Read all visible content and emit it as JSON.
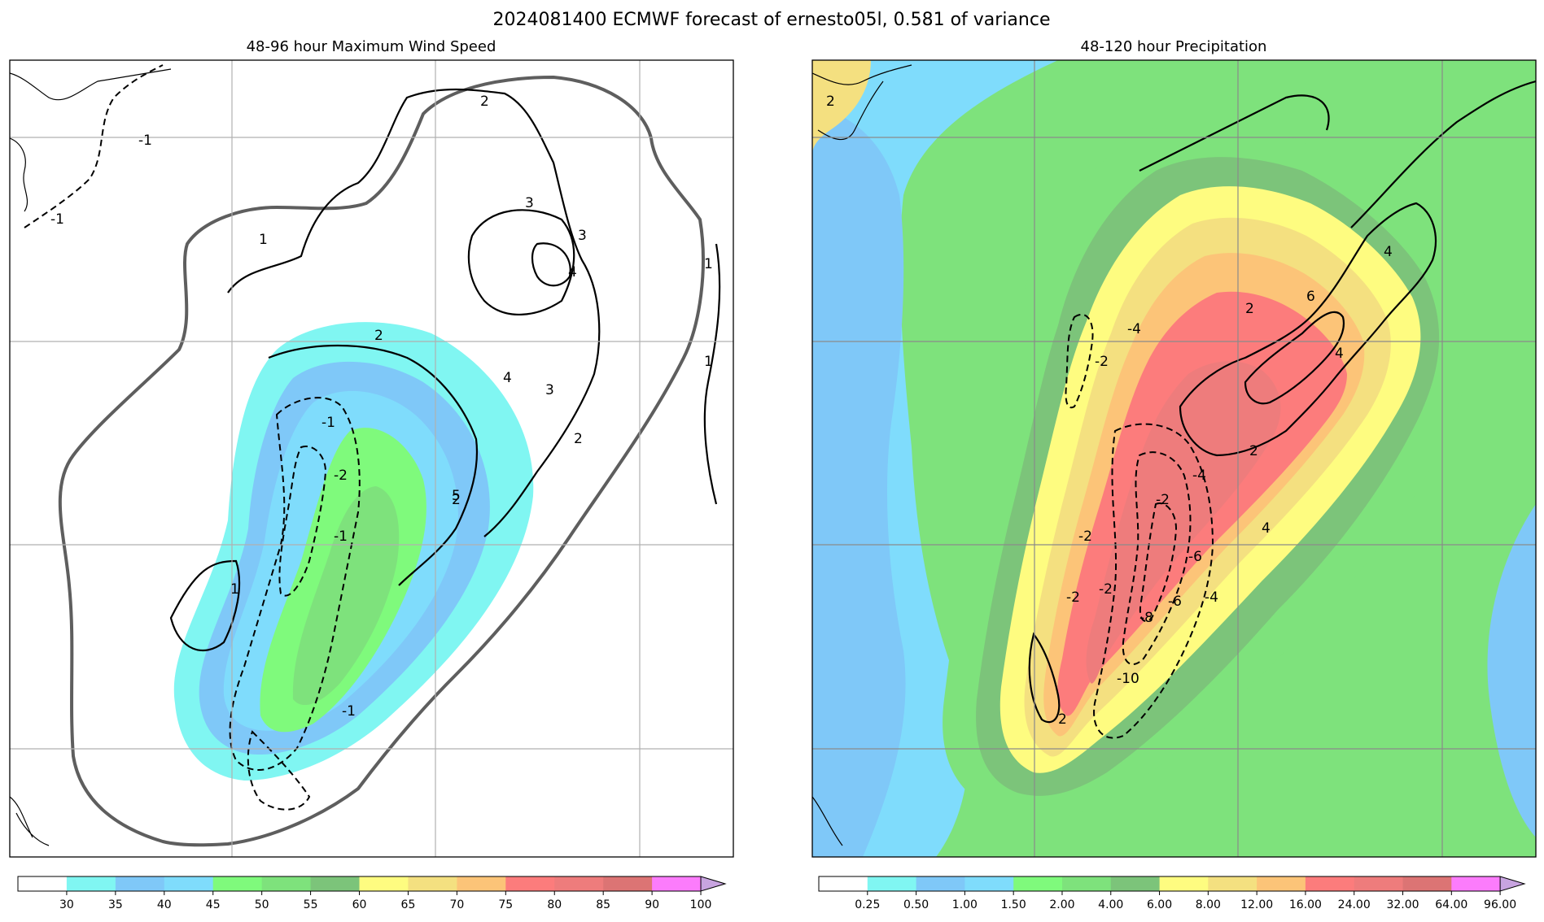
{
  "figure": {
    "title": "2024081400 ECMWF forecast of ernesto05l, 0.581 of variance"
  },
  "chart_data": [
    {
      "type": "heatmap",
      "title": "48-96 hour Maximum Wind Speed",
      "field": "max_wind_speed_shaded_with_sensitivity_contours",
      "contour_labels": [
        "-1",
        "-1",
        "-1",
        "-1",
        "1",
        "1",
        "1",
        "1",
        "2",
        "2",
        "2",
        "2",
        "3",
        "3",
        "3",
        "4",
        "4",
        "5",
        "-2",
        "-1"
      ],
      "colorbar": {
        "ticks": [
          "30",
          "35",
          "40",
          "45",
          "50",
          "55",
          "60",
          "65",
          "70",
          "75",
          "80",
          "85",
          "90",
          "100"
        ],
        "colors": [
          "#ffffff",
          "#80f6f2",
          "#7fc8f8",
          "#7fdcfc",
          "#7ffa7c",
          "#7ee27c",
          "#7cc47a",
          "#fefc80",
          "#f4e080",
          "#fcc478",
          "#fc7c7c",
          "#ee7c7c",
          "#dc7474",
          "#fc7cfc",
          "#c8a4e0"
        ],
        "extend": "max"
      },
      "grid": true
    },
    {
      "type": "heatmap",
      "title": "48-120 hour Precipitation",
      "field": "precipitation_shaded_with_sensitivity_contours",
      "contour_labels": [
        "2",
        "-2",
        "4",
        "-4",
        "2",
        "-2",
        "6",
        "4",
        "-2",
        "2",
        "-6",
        "-4",
        "-10",
        "-8",
        "-6",
        "-2",
        "-4",
        "-2",
        "2",
        "4"
      ],
      "colorbar": {
        "ticks": [
          "0.25",
          "0.50",
          "1.00",
          "1.50",
          "2.00",
          "4.00",
          "6.00",
          "8.00",
          "12.00",
          "16.00",
          "24.00",
          "32.00",
          "64.00",
          "96.00"
        ],
        "colors": [
          "#ffffff",
          "#80f6f2",
          "#7fc8f8",
          "#7fdcfc",
          "#7ffa7c",
          "#7ee27c",
          "#7cc47a",
          "#fefc80",
          "#f4e080",
          "#fcc478",
          "#fc7c7c",
          "#ee7c7c",
          "#dc7474",
          "#fc7cfc",
          "#c8a4e0"
        ],
        "extend": "max"
      },
      "grid": true
    }
  ]
}
